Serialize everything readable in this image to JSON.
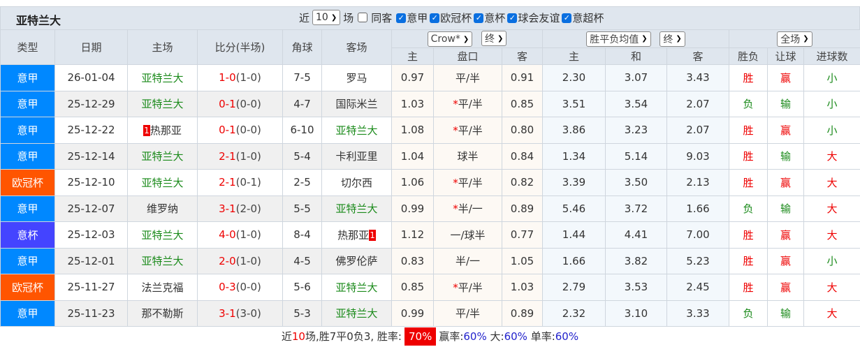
{
  "title": "亚特兰大",
  "filters": {
    "recent_prefix": "近",
    "recent_count": "10",
    "recent_suffix": "场",
    "same_venue": {
      "label": "同客",
      "checked": false
    },
    "leagues": [
      {
        "label": "意甲",
        "checked": true
      },
      {
        "label": "欧冠杯",
        "checked": true
      },
      {
        "label": "意杯",
        "checked": true
      },
      {
        "label": "球会友谊",
        "checked": true
      },
      {
        "label": "意超杯",
        "checked": true
      }
    ]
  },
  "headers": {
    "type": "类型",
    "date": "日期",
    "home": "主场",
    "score": "比分(半场)",
    "corner": "角球",
    "away": "客场",
    "asian_company": "Crow*",
    "asian_phase": "终",
    "odds_type": "胜平负均值",
    "odds_phase": "终",
    "result_scope": "全场",
    "a_home": "主",
    "a_line": "盘口",
    "a_away": "客",
    "o_home": "主",
    "o_draw": "和",
    "o_away": "客",
    "r_wl": "胜负",
    "r_hc": "让球",
    "r_ou": "进球数"
  },
  "colors": {
    "意甲": "#0088ff",
    "欧冠杯": "#ff5500",
    "意杯": "#4444ff",
    "win": "#e00000",
    "lose": "#1a8a1a"
  },
  "rows": [
    {
      "league": "意甲",
      "date": "26-01-04",
      "home": "亚特兰大",
      "home_badge": "",
      "home_hl": true,
      "score": "1-0",
      "half": "(1-0)",
      "corner": "7-5",
      "away": "罗马",
      "away_badge": "",
      "away_hl": false,
      "a_home": "0.97",
      "a_star": "",
      "a_line": "平/半",
      "a_away": "0.91",
      "o_home": "2.30",
      "o_draw": "3.07",
      "o_away": "3.43",
      "wl": "胜",
      "hc": "赢",
      "ou": "小"
    },
    {
      "league": "意甲",
      "date": "25-12-29",
      "home": "亚特兰大",
      "home_badge": "",
      "home_hl": true,
      "score": "0-1",
      "half": "(0-0)",
      "corner": "4-7",
      "away": "国际米兰",
      "away_badge": "",
      "away_hl": false,
      "a_home": "1.03",
      "a_star": "*",
      "a_line": "平/半",
      "a_away": "0.85",
      "o_home": "3.51",
      "o_draw": "3.54",
      "o_away": "2.07",
      "wl": "负",
      "hc": "输",
      "ou": "小"
    },
    {
      "league": "意甲",
      "date": "25-12-22",
      "home": "热那亚",
      "home_badge": "1",
      "home_hl": false,
      "score": "0-1",
      "half": "(0-0)",
      "corner": "6-10",
      "away": "亚特兰大",
      "away_badge": "",
      "away_hl": true,
      "a_home": "1.08",
      "a_star": "*",
      "a_line": "平/半",
      "a_away": "0.80",
      "o_home": "3.86",
      "o_draw": "3.23",
      "o_away": "2.07",
      "wl": "胜",
      "hc": "赢",
      "ou": "小"
    },
    {
      "league": "意甲",
      "date": "25-12-14",
      "home": "亚特兰大",
      "home_badge": "",
      "home_hl": true,
      "score": "2-1",
      "half": "(1-0)",
      "corner": "5-4",
      "away": "卡利亚里",
      "away_badge": "",
      "away_hl": false,
      "a_home": "1.04",
      "a_star": "",
      "a_line": "球半",
      "a_away": "0.84",
      "o_home": "1.34",
      "o_draw": "5.14",
      "o_away": "9.03",
      "wl": "胜",
      "hc": "输",
      "ou": "大"
    },
    {
      "league": "欧冠杯",
      "date": "25-12-10",
      "home": "亚特兰大",
      "home_badge": "",
      "home_hl": true,
      "score": "2-1",
      "half": "(0-1)",
      "corner": "2-5",
      "away": "切尔西",
      "away_badge": "",
      "away_hl": false,
      "a_home": "1.06",
      "a_star": "*",
      "a_line": "平/半",
      "a_away": "0.82",
      "o_home": "3.39",
      "o_draw": "3.50",
      "o_away": "2.13",
      "wl": "胜",
      "hc": "赢",
      "ou": "大"
    },
    {
      "league": "意甲",
      "date": "25-12-07",
      "home": "维罗纳",
      "home_badge": "",
      "home_hl": false,
      "score": "3-1",
      "half": "(2-0)",
      "corner": "5-5",
      "away": "亚特兰大",
      "away_badge": "",
      "away_hl": true,
      "a_home": "0.99",
      "a_star": "*",
      "a_line": "半/一",
      "a_away": "0.89",
      "o_home": "5.46",
      "o_draw": "3.72",
      "o_away": "1.66",
      "wl": "负",
      "hc": "输",
      "ou": "大"
    },
    {
      "league": "意杯",
      "date": "25-12-03",
      "home": "亚特兰大",
      "home_badge": "",
      "home_hl": true,
      "score": "4-0",
      "half": "(1-0)",
      "corner": "8-4",
      "away": "热那亚",
      "away_badge": "1",
      "away_hl": false,
      "a_home": "1.12",
      "a_star": "",
      "a_line": "一/球半",
      "a_away": "0.77",
      "o_home": "1.44",
      "o_draw": "4.41",
      "o_away": "7.00",
      "wl": "胜",
      "hc": "赢",
      "ou": "大"
    },
    {
      "league": "意甲",
      "date": "25-12-01",
      "home": "亚特兰大",
      "home_badge": "",
      "home_hl": true,
      "score": "2-0",
      "half": "(1-0)",
      "corner": "4-5",
      "away": "佛罗伦萨",
      "away_badge": "",
      "away_hl": false,
      "a_home": "0.83",
      "a_star": "",
      "a_line": "半/一",
      "a_away": "1.05",
      "o_home": "1.66",
      "o_draw": "3.82",
      "o_away": "5.23",
      "wl": "胜",
      "hc": "赢",
      "ou": "小"
    },
    {
      "league": "欧冠杯",
      "date": "25-11-27",
      "home": "法兰克福",
      "home_badge": "",
      "home_hl": false,
      "score": "0-3",
      "half": "(0-0)",
      "corner": "5-6",
      "away": "亚特兰大",
      "away_badge": "",
      "away_hl": true,
      "a_home": "0.85",
      "a_star": "*",
      "a_line": "平/半",
      "a_away": "1.03",
      "o_home": "2.79",
      "o_draw": "3.53",
      "o_away": "2.45",
      "wl": "胜",
      "hc": "赢",
      "ou": "大"
    },
    {
      "league": "意甲",
      "date": "25-11-23",
      "home": "那不勒斯",
      "home_badge": "",
      "home_hl": false,
      "score": "3-1",
      "half": "(3-0)",
      "corner": "5-3",
      "away": "亚特兰大",
      "away_badge": "",
      "away_hl": true,
      "a_home": "0.99",
      "a_star": "",
      "a_line": "平/半",
      "a_away": "0.89",
      "o_home": "2.32",
      "o_draw": "3.10",
      "o_away": "3.33",
      "wl": "负",
      "hc": "输",
      "ou": "大"
    }
  ],
  "summary": {
    "p1": "近",
    "games": "10",
    "p2": "场,胜7平0负3, 胜率:",
    "win_rate": "70%",
    "hc_label": "赢率:",
    "hc_rate": "60%",
    "ou_label": "大:",
    "ou_rate": "60%",
    "odd_label": "单率:",
    "odd_rate": "60%"
  }
}
